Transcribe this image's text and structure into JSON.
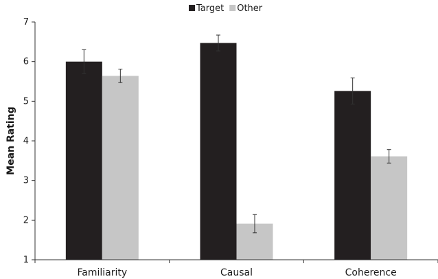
{
  "chart_data": {
    "type": "bar",
    "title": "",
    "xlabel": "",
    "ylabel": "Mean Rating",
    "ylim": [
      1,
      7
    ],
    "yticks": [
      1,
      2,
      3,
      4,
      5,
      6,
      7
    ],
    "categories": [
      "Familiarity",
      "Causal",
      "Coherence"
    ],
    "series": [
      {
        "name": "Target",
        "values": [
          6.0,
          6.47,
          5.26
        ],
        "errors": [
          0.3,
          0.2,
          0.33
        ]
      },
      {
        "name": "Other",
        "values": [
          5.64,
          1.91,
          3.61
        ],
        "errors": [
          0.17,
          0.23,
          0.17
        ]
      }
    ],
    "colors": [
      "#231f20",
      "#c6c6c6"
    ],
    "grid": false,
    "legend": "top-center"
  }
}
